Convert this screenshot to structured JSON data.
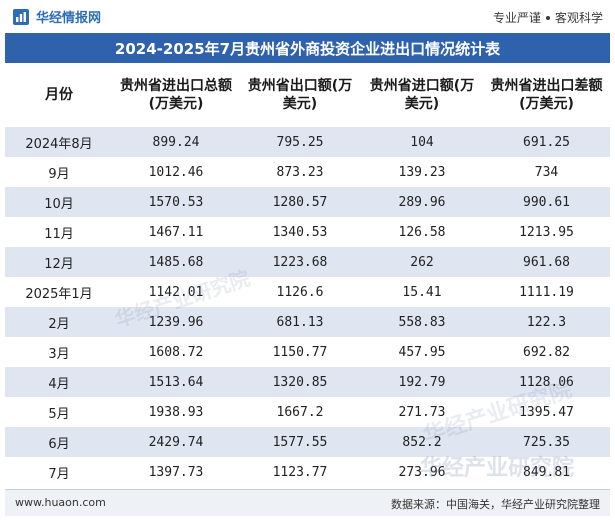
{
  "brand": {
    "name": "华经情报网"
  },
  "slogan": {
    "left": "专业严谨",
    "right": "客观科学"
  },
  "title": "2024-2025年7月贵州省外商投资企业进出口情况统计表",
  "table": {
    "headers": [
      "月份",
      "贵州省进出口总额(万美元)",
      "贵州省出口额(万美元)",
      "贵州省进口额(万美元)",
      "贵州省进出口差额(万美元)"
    ],
    "rows": [
      {
        "month": "2024年8月",
        "total": "899.24",
        "export": "795.25",
        "import": "104",
        "balance": "691.25"
      },
      {
        "month": "9月",
        "total": "1012.46",
        "export": "873.23",
        "import": "139.23",
        "balance": "734"
      },
      {
        "month": "10月",
        "total": "1570.53",
        "export": "1280.57",
        "import": "289.96",
        "balance": "990.61"
      },
      {
        "month": "11月",
        "total": "1467.11",
        "export": "1340.53",
        "import": "126.58",
        "balance": "1213.95"
      },
      {
        "month": "12月",
        "total": "1485.68",
        "export": "1223.68",
        "import": "262",
        "balance": "961.68"
      },
      {
        "month": "2025年1月",
        "total": "1142.01",
        "export": "1126.6",
        "import": "15.41",
        "balance": "1111.19"
      },
      {
        "month": "2月",
        "total": "1239.96",
        "export": "681.13",
        "import": "558.83",
        "balance": "122.3"
      },
      {
        "month": "3月",
        "total": "1608.72",
        "export": "1150.77",
        "import": "457.95",
        "balance": "692.82"
      },
      {
        "month": "4月",
        "total": "1513.64",
        "export": "1320.85",
        "import": "192.79",
        "balance": "1128.06"
      },
      {
        "month": "5月",
        "total": "1938.93",
        "export": "1667.2",
        "import": "271.73",
        "balance": "1395.47"
      },
      {
        "month": "6月",
        "total": "2429.74",
        "export": "1577.55",
        "import": "852.2",
        "balance": "725.35"
      },
      {
        "month": "7月",
        "total": "1397.73",
        "export": "1123.77",
        "import": "273.96",
        "balance": "849.81"
      }
    ]
  },
  "watermarks": [
    "华经产业研究院",
    "华经产业研究院",
    "华经产业研究院"
  ],
  "footer": {
    "site": "www.huaon.com",
    "source": "数据来源：中国海关，华经产业研究院整理"
  },
  "colors": {
    "accent": "#2e62ad",
    "stripe": "#dfe6f2"
  }
}
